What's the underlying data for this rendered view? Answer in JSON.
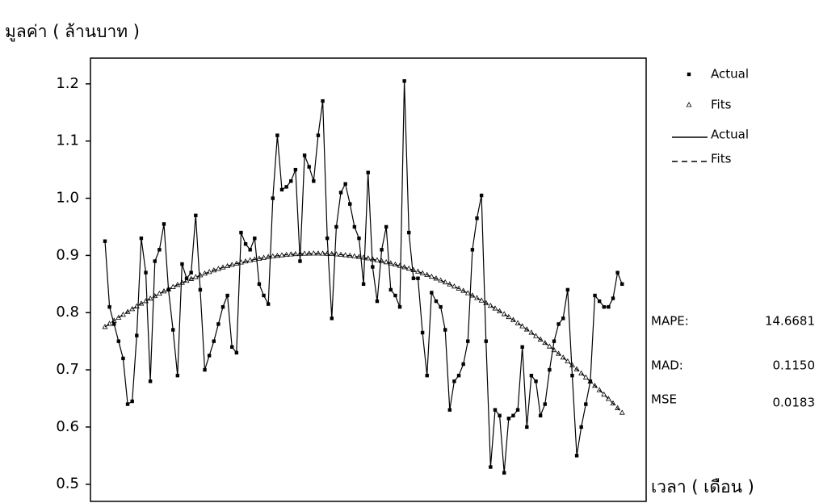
{
  "chart_data": {
    "type": "line",
    "y_axis_label": "มูลค่า ( ล้านบาท )",
    "x_axis_label": "เวลา ( เดือน )",
    "x": [
      1,
      2,
      3,
      4,
      5,
      6,
      7,
      8,
      9,
      10,
      11,
      12,
      13,
      14,
      15,
      16,
      17,
      18,
      19,
      20,
      21,
      22,
      23,
      24,
      25,
      26,
      27,
      28,
      29,
      30,
      31,
      32,
      33,
      34,
      35,
      36,
      37,
      38,
      39,
      40,
      41,
      42,
      43,
      44,
      45,
      46,
      47,
      48,
      49,
      50,
      51,
      52,
      53,
      54,
      55,
      56,
      57,
      58,
      59,
      60,
      61,
      62,
      63,
      64,
      65,
      66,
      67,
      68,
      69,
      70,
      71,
      72,
      73,
      74,
      75,
      76,
      77,
      78,
      79,
      80,
      81,
      82,
      83,
      84,
      85,
      86,
      87,
      88,
      89,
      90,
      91,
      92,
      93,
      94,
      95,
      96,
      97,
      98,
      99,
      100,
      101,
      102,
      103,
      104,
      105,
      106,
      107,
      108,
      109,
      110,
      111,
      112,
      113,
      114,
      115
    ],
    "xlim": [
      -2.2,
      120.3
    ],
    "ylim": [
      0.47,
      1.245
    ],
    "yticks": [
      0.5,
      0.6,
      0.7,
      0.8,
      0.9,
      {
        "value": 1,
        "label": "1.0"
      },
      1.1,
      1.2
    ],
    "series": [
      {
        "name": "Actual",
        "color": "#000000",
        "marker": "square",
        "line_style": "solid",
        "values": [
          0.925,
          0.81,
          0.78,
          0.75,
          0.72,
          0.64,
          0.645,
          0.76,
          0.93,
          0.87,
          0.68,
          0.89,
          0.91,
          0.955,
          0.84,
          0.77,
          0.69,
          0.885,
          0.86,
          0.87,
          0.97,
          0.84,
          0.7,
          0.725,
          0.75,
          0.78,
          0.81,
          0.83,
          0.74,
          0.73,
          0.94,
          0.92,
          0.91,
          0.93,
          0.85,
          0.83,
          0.815,
          1.0,
          1.11,
          1.015,
          1.02,
          1.03,
          1.05,
          0.89,
          1.075,
          1.055,
          1.03,
          1.11,
          1.17,
          0.93,
          0.79,
          0.95,
          1.01,
          1.025,
          0.99,
          0.95,
          0.93,
          0.85,
          1.045,
          0.88,
          0.82,
          0.91,
          0.95,
          0.84,
          0.83,
          0.81,
          1.205,
          0.94,
          0.86,
          0.86,
          0.765,
          0.69,
          0.835,
          0.82,
          0.81,
          0.77,
          0.63,
          0.68,
          0.69,
          0.71,
          0.75,
          0.91,
          0.965,
          1.005,
          0.75,
          0.53,
          0.63,
          0.62,
          0.52,
          0.615,
          0.62,
          0.63,
          0.74,
          0.6,
          0.69,
          0.68,
          0.62,
          0.64,
          0.7,
          0.75,
          0.78,
          0.79,
          0.84,
          0.69,
          0.55,
          0.6,
          0.64,
          0.68,
          0.83,
          0.82,
          0.81,
          0.81,
          0.825,
          0.87,
          0.85
        ]
      },
      {
        "name": "Fits",
        "color": "#000000",
        "marker": "triangle",
        "line_style": "dashed",
        "values": [
          0.775,
          0.7805,
          0.7859,
          0.7911,
          0.7963,
          0.8013,
          0.8062,
          0.811,
          0.8157,
          0.8202,
          0.8246,
          0.8289,
          0.8331,
          0.8372,
          0.8411,
          0.8449,
          0.8486,
          0.8522,
          0.8557,
          0.859,
          0.8622,
          0.8653,
          0.8683,
          0.8711,
          0.8739,
          0.8765,
          0.879,
          0.8813,
          0.8836,
          0.8857,
          0.8877,
          0.8896,
          0.8914,
          0.893,
          0.8945,
          0.8959,
          0.8972,
          0.8984,
          0.8994,
          0.9003,
          0.9011,
          0.9018,
          0.9024,
          0.9028,
          0.9031,
          0.9033,
          0.9034,
          0.9034,
          0.9032,
          0.9029,
          0.9025,
          0.902,
          0.9013,
          0.9005,
          0.8996,
          0.8986,
          0.8975,
          0.8962,
          0.8949,
          0.8934,
          0.8917,
          0.89,
          0.8881,
          0.8862,
          0.8841,
          0.8818,
          0.8795,
          0.877,
          0.8745,
          0.8718,
          0.8689,
          0.866,
          0.8629,
          0.8597,
          0.8564,
          0.853,
          0.8494,
          0.8458,
          0.842,
          0.8381,
          0.834,
          0.8299,
          0.8256,
          0.8212,
          0.8167,
          0.812,
          0.8073,
          0.8024,
          0.7974,
          0.7923,
          0.7871,
          0.7817,
          0.7762,
          0.7706,
          0.7649,
          0.759,
          0.7531,
          0.747,
          0.7408,
          0.7344,
          0.728,
          0.7214,
          0.7147,
          0.7079,
          0.701,
          0.6939,
          0.6868,
          0.6795,
          0.672,
          0.6645,
          0.6568,
          0.6491,
          0.6412,
          0.6331,
          0.625
        ]
      }
    ],
    "accuracy_measures": [
      {
        "label": "MAPE:",
        "value": 14.6681
      },
      {
        "label": "MAD:",
        "value": 0.115,
        "value_label": "0.1150"
      },
      {
        "label": "MSE",
        "value": 0.0183
      }
    ]
  }
}
